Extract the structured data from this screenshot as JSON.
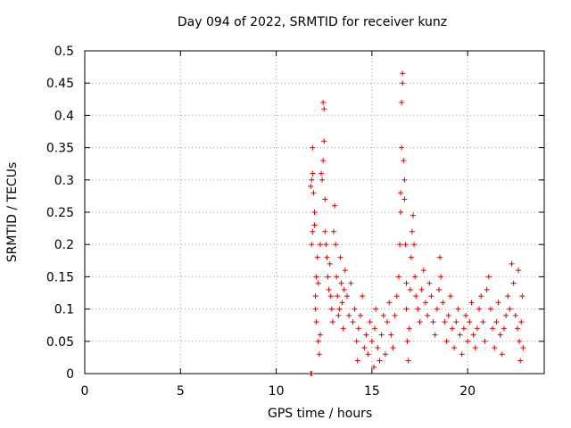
{
  "chart_data": {
    "type": "scatter",
    "title": "Day 094 of 2022, SRMTID for receiver kunz",
    "xlabel": "GPS time / hours",
    "ylabel": "SRMTID / TECUs",
    "xlim": [
      0,
      24
    ],
    "ylim": [
      0,
      0.5
    ],
    "xticks": [
      0,
      5,
      10,
      15,
      20
    ],
    "yticks": [
      0,
      0.05,
      0.1,
      0.15,
      0.2,
      0.25,
      0.3,
      0.35,
      0.4,
      0.45,
      0.5
    ],
    "ytick_labels": [
      "0",
      "0.05",
      "0.1",
      "0.15",
      "0.2",
      "0.25",
      "0.3",
      "0.35",
      "0.4",
      "0.45",
      "0.5"
    ],
    "grid": true,
    "marker": "+",
    "color": "#dd0000",
    "series": [
      {
        "name": "SRMTID",
        "points": [
          [
            11.8,
            0.0
          ],
          [
            11.85,
            0.0
          ],
          [
            11.8,
            0.29
          ],
          [
            11.85,
            0.3
          ],
          [
            11.9,
            0.31
          ],
          [
            11.9,
            0.35
          ],
          [
            11.95,
            0.28
          ],
          [
            12.0,
            0.25
          ],
          [
            11.85,
            0.2
          ],
          [
            11.9,
            0.22
          ],
          [
            12.0,
            0.23
          ],
          [
            12.05,
            0.12
          ],
          [
            12.05,
            0.1
          ],
          [
            12.1,
            0.08
          ],
          [
            12.1,
            0.15
          ],
          [
            12.15,
            0.18
          ],
          [
            12.2,
            0.14
          ],
          [
            12.2,
            0.05
          ],
          [
            12.25,
            0.03
          ],
          [
            12.3,
            0.06
          ],
          [
            12.3,
            0.2
          ],
          [
            12.35,
            0.31
          ],
          [
            12.4,
            0.3
          ],
          [
            12.45,
            0.33
          ],
          [
            12.45,
            0.42
          ],
          [
            12.5,
            0.41
          ],
          [
            12.5,
            0.36
          ],
          [
            12.55,
            0.27
          ],
          [
            12.55,
            0.22
          ],
          [
            12.6,
            0.2
          ],
          [
            12.65,
            0.18
          ],
          [
            12.7,
            0.15
          ],
          [
            12.75,
            0.13
          ],
          [
            12.8,
            0.17
          ],
          [
            12.85,
            0.12
          ],
          [
            12.9,
            0.1
          ],
          [
            12.95,
            0.08
          ],
          [
            13.0,
            0.22
          ],
          [
            13.05,
            0.26
          ],
          [
            13.1,
            0.2
          ],
          [
            13.15,
            0.15
          ],
          [
            13.2,
            0.12
          ],
          [
            13.25,
            0.09
          ],
          [
            13.3,
            0.1
          ],
          [
            13.35,
            0.18
          ],
          [
            13.4,
            0.14
          ],
          [
            13.45,
            0.11
          ],
          [
            13.5,
            0.07
          ],
          [
            13.55,
            0.13
          ],
          [
            13.6,
            0.16
          ],
          [
            13.7,
            0.12
          ],
          [
            13.8,
            0.09
          ],
          [
            13.9,
            0.14
          ],
          [
            14.0,
            0.08
          ],
          [
            14.1,
            0.1
          ],
          [
            14.2,
            0.05
          ],
          [
            14.25,
            0.02
          ],
          [
            14.3,
            0.07
          ],
          [
            14.4,
            0.09
          ],
          [
            14.5,
            0.12
          ],
          [
            14.6,
            0.04
          ],
          [
            14.7,
            0.06
          ],
          [
            14.8,
            0.03
          ],
          [
            14.9,
            0.08
          ],
          [
            15.0,
            0.05
          ],
          [
            15.1,
            0.01
          ],
          [
            15.15,
            0.07
          ],
          [
            15.2,
            0.1
          ],
          [
            15.3,
            0.04
          ],
          [
            15.4,
            0.02
          ],
          [
            15.5,
            0.06
          ],
          [
            15.6,
            0.09
          ],
          [
            15.7,
            0.03
          ],
          [
            15.8,
            0.08
          ],
          [
            15.9,
            0.11
          ],
          [
            16.0,
            0.06
          ],
          [
            16.1,
            0.04
          ],
          [
            16.2,
            0.09
          ],
          [
            16.3,
            0.12
          ],
          [
            16.4,
            0.15
          ],
          [
            16.45,
            0.2
          ],
          [
            16.5,
            0.25
          ],
          [
            16.5,
            0.28
          ],
          [
            16.55,
            0.35
          ],
          [
            16.55,
            0.42
          ],
          [
            16.6,
            0.45
          ],
          [
            16.6,
            0.465
          ],
          [
            16.65,
            0.33
          ],
          [
            16.7,
            0.3
          ],
          [
            16.7,
            0.27
          ],
          [
            16.75,
            0.2
          ],
          [
            16.8,
            0.14
          ],
          [
            16.8,
            0.1
          ],
          [
            16.85,
            0.05
          ],
          [
            16.9,
            0.02
          ],
          [
            16.95,
            0.07
          ],
          [
            17.0,
            0.13
          ],
          [
            17.05,
            0.18
          ],
          [
            17.1,
            0.22
          ],
          [
            17.15,
            0.245
          ],
          [
            17.2,
            0.2
          ],
          [
            17.25,
            0.15
          ],
          [
            17.3,
            0.12
          ],
          [
            17.4,
            0.1
          ],
          [
            17.5,
            0.08
          ],
          [
            17.6,
            0.13
          ],
          [
            17.7,
            0.16
          ],
          [
            17.8,
            0.11
          ],
          [
            17.9,
            0.09
          ],
          [
            18.0,
            0.14
          ],
          [
            18.1,
            0.12
          ],
          [
            18.2,
            0.08
          ],
          [
            18.3,
            0.06
          ],
          [
            18.4,
            0.1
          ],
          [
            18.5,
            0.13
          ],
          [
            18.55,
            0.18
          ],
          [
            18.6,
            0.15
          ],
          [
            18.7,
            0.11
          ],
          [
            18.8,
            0.08
          ],
          [
            18.9,
            0.05
          ],
          [
            19.0,
            0.09
          ],
          [
            19.1,
            0.12
          ],
          [
            19.2,
            0.07
          ],
          [
            19.3,
            0.04
          ],
          [
            19.4,
            0.08
          ],
          [
            19.5,
            0.1
          ],
          [
            19.6,
            0.06
          ],
          [
            19.7,
            0.03
          ],
          [
            19.8,
            0.07
          ],
          [
            19.9,
            0.09
          ],
          [
            20.0,
            0.05
          ],
          [
            20.1,
            0.08
          ],
          [
            20.2,
            0.11
          ],
          [
            20.3,
            0.06
          ],
          [
            20.4,
            0.04
          ],
          [
            20.5,
            0.07
          ],
          [
            20.6,
            0.1
          ],
          [
            20.7,
            0.12
          ],
          [
            20.8,
            0.08
          ],
          [
            20.9,
            0.05
          ],
          [
            21.0,
            0.13
          ],
          [
            21.1,
            0.15
          ],
          [
            21.2,
            0.1
          ],
          [
            21.3,
            0.07
          ],
          [
            21.4,
            0.04
          ],
          [
            21.5,
            0.08
          ],
          [
            21.6,
            0.11
          ],
          [
            21.7,
            0.06
          ],
          [
            21.8,
            0.03
          ],
          [
            21.9,
            0.07
          ],
          [
            22.0,
            0.09
          ],
          [
            22.1,
            0.12
          ],
          [
            22.2,
            0.1
          ],
          [
            22.3,
            0.17
          ],
          [
            22.4,
            0.14
          ],
          [
            22.5,
            0.09
          ],
          [
            22.6,
            0.07
          ],
          [
            22.65,
            0.16
          ],
          [
            22.7,
            0.05
          ],
          [
            22.75,
            0.02
          ],
          [
            22.8,
            0.08
          ],
          [
            22.85,
            0.12
          ],
          [
            22.9,
            0.04
          ]
        ]
      }
    ]
  }
}
